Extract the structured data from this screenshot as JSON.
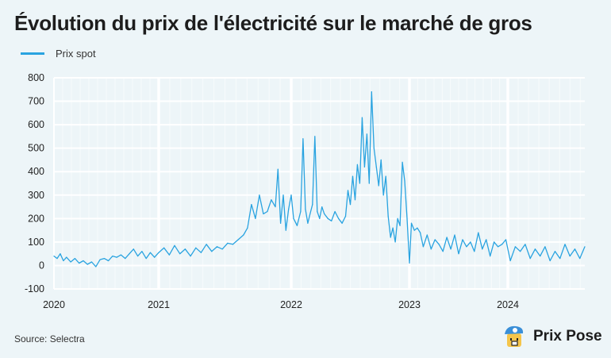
{
  "title": "Évolution du prix de l'électricité sur le marché de gros",
  "source": "Source: Selectra",
  "brand": "Prix Pose",
  "colors": {
    "line": "#29a3e0",
    "background": "#edf5f8"
  },
  "chart_data": {
    "type": "line",
    "title": "Évolution du prix de l'électricité sur le marché de gros",
    "xlabel": "",
    "ylabel": "",
    "ylim": [
      -100,
      800
    ],
    "yticks": [
      "-100",
      "0",
      "100",
      "200",
      "300",
      "400",
      "500",
      "600",
      "700",
      "800"
    ],
    "xticks": [
      "2020",
      "2021",
      "2022",
      "2023",
      "2024"
    ],
    "xlim": [
      2020.0,
      2024.62
    ],
    "grid": true,
    "legend": {
      "placement": "top-left",
      "entries": [
        "Prix spot"
      ]
    },
    "series": [
      {
        "name": "Prix spot",
        "x": [
          2020.0,
          2020.03,
          2020.06,
          2020.09,
          2020.12,
          2020.16,
          2020.2,
          2020.24,
          2020.28,
          2020.32,
          2020.36,
          2020.4,
          2020.44,
          2020.48,
          2020.52,
          2020.56,
          2020.6,
          2020.64,
          2020.68,
          2020.72,
          2020.76,
          2020.8,
          2020.84,
          2020.88,
          2020.92,
          2020.96,
          2021.0,
          2021.04,
          2021.08,
          2021.12,
          2021.16,
          2021.2,
          2021.24,
          2021.28,
          2021.32,
          2021.36,
          2021.4,
          2021.44,
          2021.48,
          2021.52,
          2021.56,
          2021.6,
          2021.64,
          2021.67,
          2021.7,
          2021.73,
          2021.76,
          2021.79,
          2021.82,
          2021.85,
          2021.88,
          2021.9,
          2021.92,
          2021.94,
          2021.96,
          2021.98,
          2022.0,
          2022.02,
          2022.05,
          2022.08,
          2022.1,
          2022.12,
          2022.14,
          2022.16,
          2022.18,
          2022.2,
          2022.22,
          2022.24,
          2022.26,
          2022.28,
          2022.31,
          2022.34,
          2022.37,
          2022.4,
          2022.43,
          2022.46,
          2022.48,
          2022.5,
          2022.52,
          2022.54,
          2022.56,
          2022.58,
          2022.6,
          2022.62,
          2022.64,
          2022.66,
          2022.68,
          2022.7,
          2022.72,
          2022.74,
          2022.76,
          2022.78,
          2022.8,
          2022.82,
          2022.84,
          2022.86,
          2022.88,
          2022.9,
          2022.92,
          2022.94,
          2022.96,
          2022.98,
          2023.0,
          2023.02,
          2023.05,
          2023.08,
          2023.11,
          2023.14,
          2023.18,
          2023.22,
          2023.26,
          2023.3,
          2023.34,
          2023.38,
          2023.42,
          2023.46,
          2023.5,
          2023.54,
          2023.58,
          2023.62,
          2023.66,
          2023.7,
          2023.74,
          2023.78,
          2023.82,
          2023.86,
          2023.9,
          2023.94,
          2023.98,
          2024.02,
          2024.06,
          2024.1,
          2024.14,
          2024.18,
          2024.22,
          2024.26,
          2024.3,
          2024.34,
          2024.38,
          2024.42,
          2024.46,
          2024.5,
          2024.54,
          2024.58,
          2024.62
        ],
        "y": [
          40,
          30,
          50,
          20,
          35,
          15,
          30,
          10,
          20,
          5,
          15,
          -5,
          25,
          30,
          20,
          40,
          35,
          45,
          30,
          50,
          70,
          40,
          60,
          30,
          55,
          35,
          55,
          75,
          45,
          85,
          50,
          70,
          40,
          75,
          55,
          90,
          60,
          80,
          70,
          95,
          90,
          110,
          130,
          160,
          260,
          200,
          300,
          220,
          230,
          280,
          250,
          410,
          180,
          300,
          150,
          240,
          300,
          200,
          170,
          230,
          540,
          240,
          180,
          220,
          260,
          550,
          230,
          200,
          250,
          220,
          200,
          190,
          230,
          200,
          180,
          210,
          320,
          260,
          380,
          280,
          430,
          350,
          630,
          420,
          560,
          350,
          740,
          500,
          420,
          340,
          450,
          300,
          380,
          210,
          120,
          160,
          100,
          200,
          170,
          440,
          360,
          200,
          10,
          180,
          150,
          160,
          140,
          80,
          130,
          70,
          110,
          90,
          60,
          120,
          70,
          130,
          50,
          110,
          80,
          100,
          60,
          140,
          70,
          110,
          40,
          100,
          80,
          90,
          110,
          20,
          80,
          60,
          90,
          30,
          70,
          40,
          80,
          20,
          60,
          30,
          90,
          40,
          70,
          30,
          80
        ]
      }
    ]
  }
}
